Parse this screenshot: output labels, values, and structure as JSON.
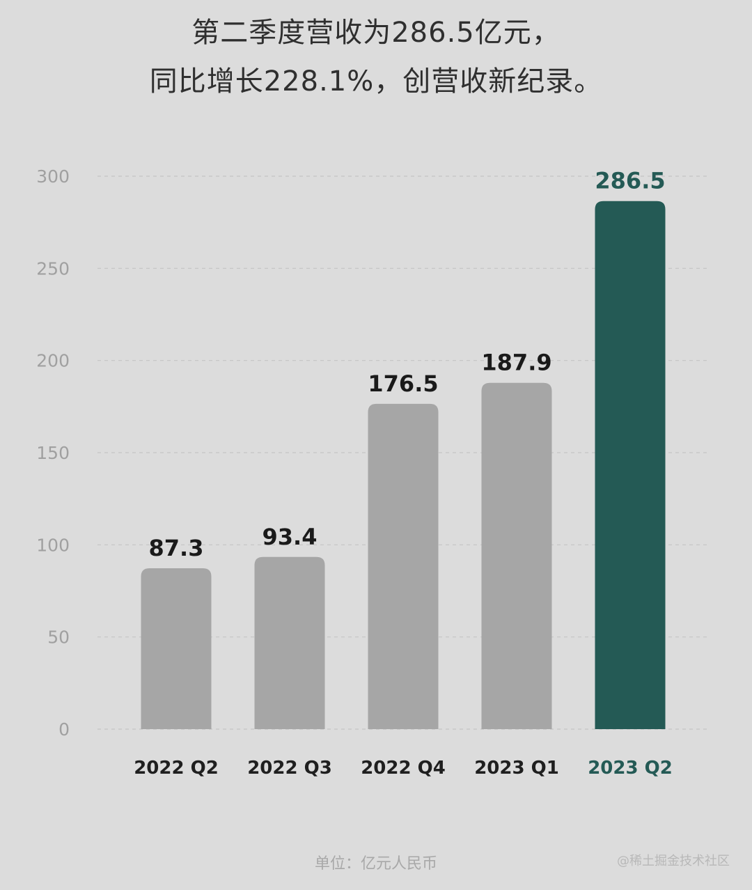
{
  "title_line1": "第二季度营收为286.5亿元，",
  "title_line2": "同比增长228.1%，创营收新纪录。",
  "unit_label": "单位：亿元人民币",
  "watermark": "@稀土掘金技术社区",
  "colors": {
    "background": "#dcdcdc",
    "bar_default": "#a6a6a6",
    "bar_highlight": "#245a55",
    "label_default": "#1a1a1a",
    "label_highlight": "#245a55",
    "axis_tick": "#a0a0a0",
    "grid": "#c4c4c4"
  },
  "chart_data": {
    "type": "bar",
    "title": "第二季度营收为286.5亿元，同比增长228.1%，创营收新纪录。",
    "xlabel": "",
    "ylabel": "",
    "unit": "单位：亿元人民币",
    "categories": [
      "2022 Q2",
      "2022 Q3",
      "2022 Q4",
      "2023 Q1",
      "2023 Q2"
    ],
    "values": [
      87.3,
      93.4,
      176.5,
      187.9,
      286.5
    ],
    "value_labels": [
      "87.3",
      "93.4",
      "176.5",
      "187.9",
      "286.5"
    ],
    "highlight_index": 4,
    "ylim": [
      0,
      300
    ],
    "yticks": [
      0,
      50,
      100,
      150,
      200,
      250,
      300
    ],
    "grid": true,
    "legend": "none"
  }
}
